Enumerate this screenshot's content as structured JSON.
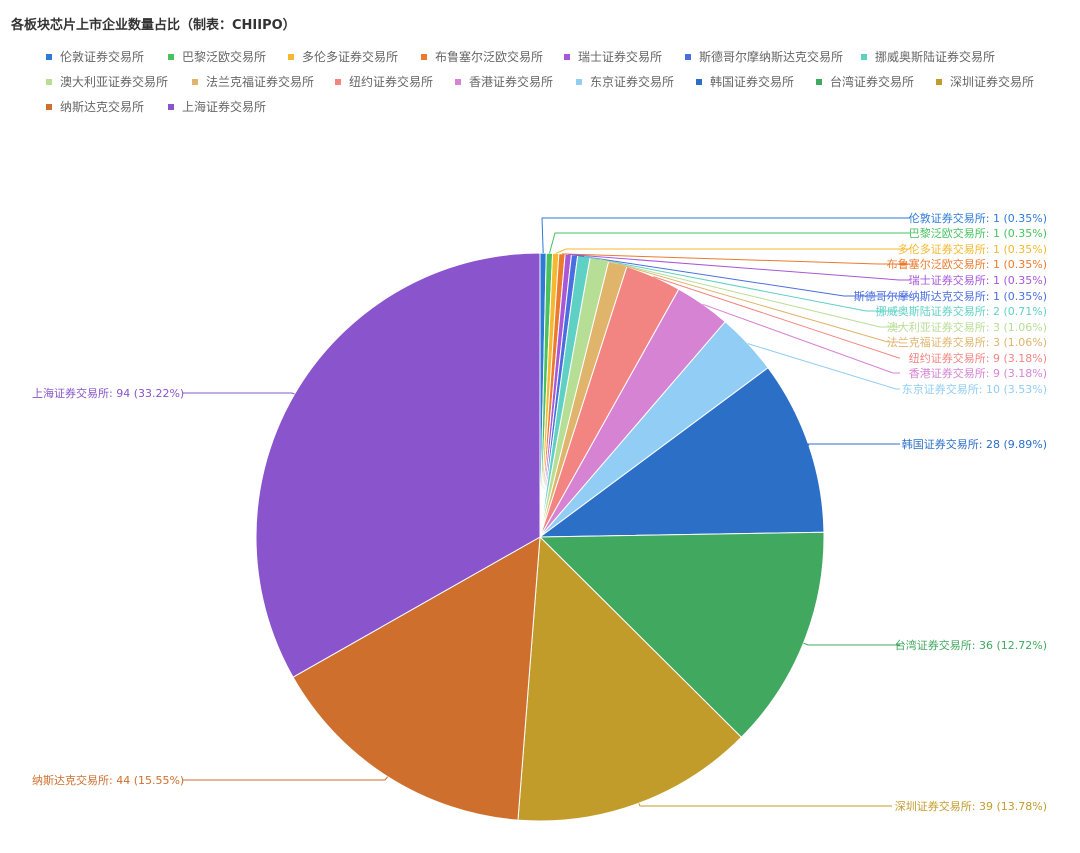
{
  "title": "各板块芯片上市企业数量占比（制表：CHIIPO）",
  "chart_data": {
    "type": "pie",
    "title": "各板块芯片上市企业数量占比（制表：CHIIPO）",
    "legend_position": "top-left",
    "slices": [
      {
        "name": "伦敦证券交易所",
        "value": 1,
        "percent": "0.35%",
        "color": "#2e7bd6"
      },
      {
        "name": "巴黎泛欧交易所",
        "value": 1,
        "percent": "0.35%",
        "color": "#47c25f"
      },
      {
        "name": "多伦多证券交易所",
        "value": 1,
        "percent": "0.35%",
        "color": "#f5b82e"
      },
      {
        "name": "布鲁塞尔泛欧交易所",
        "value": 1,
        "percent": "0.35%",
        "color": "#eb7a2e"
      },
      {
        "name": "瑞士证券交易所",
        "value": 1,
        "percent": "0.35%",
        "color": "#a857d9"
      },
      {
        "name": "斯德哥尔摩纳斯达克交易所",
        "value": 1,
        "percent": "0.35%",
        "color": "#4a6ee0"
      },
      {
        "name": "挪威奥斯陆证券交易所",
        "value": 2,
        "percent": "0.71%",
        "color": "#5fd1c4"
      },
      {
        "name": "澳大利亚证券交易所",
        "value": 3,
        "percent": "1.06%",
        "color": "#b7de95"
      },
      {
        "name": "法兰克福证券交易所",
        "value": 3,
        "percent": "1.06%",
        "color": "#e0b46b"
      },
      {
        "name": "纽约证券交易所",
        "value": 9,
        "percent": "3.18%",
        "color": "#f28582"
      },
      {
        "name": "香港证券交易所",
        "value": 9,
        "percent": "3.18%",
        "color": "#d683d3"
      },
      {
        "name": "东京证券交易所",
        "value": 10,
        "percent": "3.53%",
        "color": "#92cdf5"
      },
      {
        "name": "韩国证券交易所",
        "value": 28,
        "percent": "9.89%",
        "color": "#2b6fc7"
      },
      {
        "name": "台湾证券交易所",
        "value": 36,
        "percent": "12.72%",
        "color": "#41a85f"
      },
      {
        "name": "深圳证券交易所",
        "value": 39,
        "percent": "13.78%",
        "color": "#c29c2b"
      },
      {
        "name": "纳斯达克交易所",
        "value": 44,
        "percent": "15.55%",
        "color": "#ce6f2e"
      },
      {
        "name": "上海证券交易所",
        "value": 94,
        "percent": "33.22%",
        "color": "#8954cc"
      }
    ]
  }
}
